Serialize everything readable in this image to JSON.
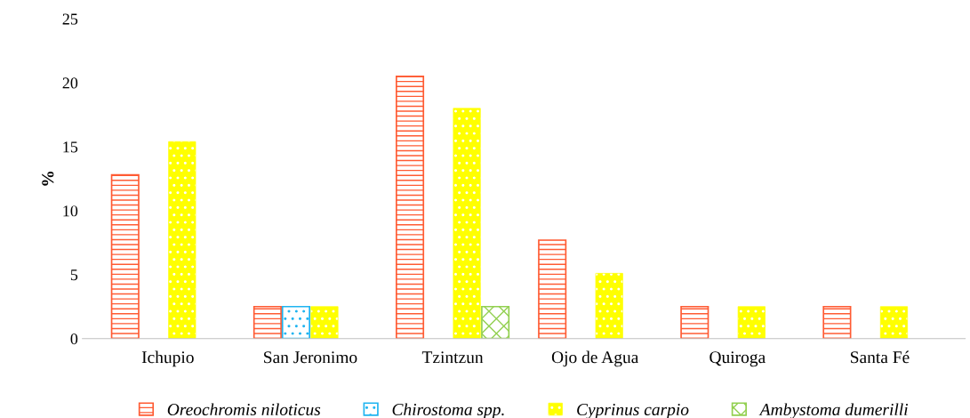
{
  "chart_data": {
    "type": "bar",
    "ylabel": "%",
    "categories": [
      "Ichupio",
      "San Jeronimo",
      "Tzintzun",
      "Ojo de Agua",
      "Quiroga",
      "Santa Fé"
    ],
    "series": [
      {
        "name": "Oreochromis niloticus",
        "color": "#ff5b33",
        "values": [
          12.8,
          2.5,
          20.5,
          7.7,
          2.5,
          2.5
        ]
      },
      {
        "name": "Chirostoma spp.",
        "color": "#1fb4f0",
        "values": [
          null,
          2.5,
          null,
          null,
          null,
          null
        ]
      },
      {
        "name": "Cyprinus carpio",
        "color": "#ffff00",
        "values": [
          15.4,
          2.5,
          18.0,
          5.1,
          2.5,
          2.5
        ]
      },
      {
        "name": "Ambystoma dumerilli",
        "color": "#92d050",
        "values": [
          null,
          null,
          2.5,
          null,
          null,
          null
        ]
      }
    ],
    "ylim": [
      0,
      25
    ],
    "yticks": [
      0,
      5,
      10,
      15,
      20,
      25
    ],
    "grid": false,
    "legend": "bottom"
  }
}
